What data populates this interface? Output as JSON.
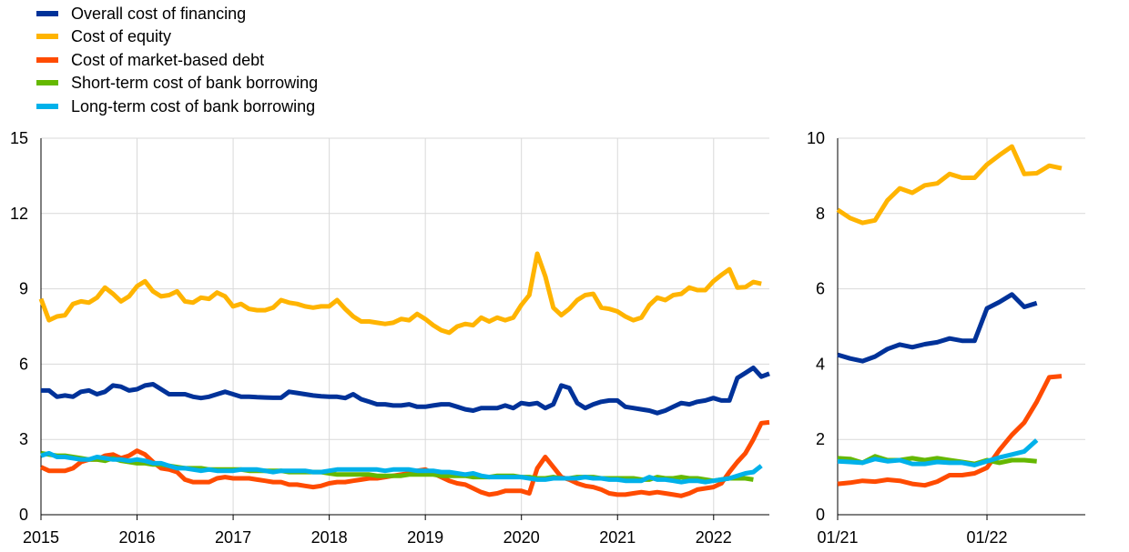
{
  "legend": [
    {
      "label": "Overall cost of financing",
      "color": "#003299"
    },
    {
      "label": "Cost of equity",
      "color": "#FFB400"
    },
    {
      "label": "Cost of market-based debt",
      "color": "#FF4B00"
    },
    {
      "label": "Short-term cost of bank borrowing",
      "color": "#65B800"
    },
    {
      "label": "Long-term cost of bank borrowing",
      "color": "#00B1EA"
    }
  ],
  "chart_data": [
    {
      "type": "line",
      "ylim": [
        0,
        15
      ],
      "xlim": [
        2015,
        2022.58
      ],
      "yticks": [
        "0",
        "3",
        "6",
        "9",
        "12",
        "15"
      ],
      "xticks": [
        "2015",
        "2016",
        "2017",
        "2018",
        "2019",
        "2020",
        "2021",
        "2022"
      ],
      "grid": "horizontal and vertical",
      "series": [
        {
          "name": "Overall cost of financing",
          "color": "#003299",
          "x_start": 2015,
          "x_step": 0.0833,
          "values": [
            4.95,
            4.95,
            4.7,
            4.75,
            4.7,
            4.9,
            4.95,
            4.8,
            4.9,
            5.15,
            5.1,
            4.95,
            5.0,
            5.15,
            5.2,
            5.0,
            4.8,
            4.8,
            4.8,
            4.7,
            4.65,
            4.7,
            4.8,
            4.9,
            4.8,
            4.7,
            4.7,
            4.68,
            4.67,
            4.66,
            4.66,
            4.9,
            4.85,
            4.8,
            4.75,
            4.72,
            4.7,
            4.7,
            4.65,
            4.8,
            4.6,
            4.5,
            4.4,
            4.4,
            4.35,
            4.35,
            4.4,
            4.3,
            4.3,
            4.35,
            4.4,
            4.4,
            4.3,
            4.2,
            4.15,
            4.25,
            4.25,
            4.25,
            4.35,
            4.25,
            4.45,
            4.4,
            4.45,
            4.25,
            4.4,
            5.15,
            5.05,
            4.45,
            4.25,
            4.4,
            4.5,
            4.55,
            4.55,
            4.3,
            4.25,
            4.2,
            4.15,
            4.05,
            4.15,
            4.3,
            4.45,
            4.4,
            4.5,
            4.55,
            4.65,
            4.55,
            4.55,
            5.45,
            5.65,
            5.85,
            5.5,
            5.62
          ]
        },
        {
          "name": "Cost of equity",
          "color": "#FFB400",
          "x_start": 2015,
          "x_step": 0.0833,
          "values": [
            8.6,
            7.75,
            7.9,
            7.95,
            8.4,
            8.5,
            8.45,
            8.65,
            9.05,
            8.8,
            8.5,
            8.7,
            9.1,
            9.3,
            8.9,
            8.7,
            8.75,
            8.9,
            8.5,
            8.45,
            8.65,
            8.6,
            8.85,
            8.7,
            8.3,
            8.4,
            8.2,
            8.15,
            8.15,
            8.25,
            8.55,
            8.45,
            8.4,
            8.3,
            8.25,
            8.3,
            8.3,
            8.55,
            8.2,
            7.9,
            7.7,
            7.7,
            7.65,
            7.6,
            7.65,
            7.8,
            7.75,
            8.0,
            7.8,
            7.55,
            7.35,
            7.25,
            7.5,
            7.6,
            7.55,
            7.85,
            7.7,
            7.85,
            7.75,
            7.85,
            8.35,
            8.75,
            10.4,
            9.5,
            8.25,
            7.95,
            8.2,
            8.55,
            8.75,
            8.8,
            8.25,
            8.2,
            8.1,
            7.9,
            7.75,
            7.85,
            8.35,
            8.65,
            8.55,
            8.75,
            8.8,
            9.05,
            8.95,
            8.95,
            9.3,
            9.55,
            9.78,
            9.05,
            9.07,
            9.27,
            9.2
          ]
        },
        {
          "name": "Cost of market-based debt",
          "color": "#FF4B00",
          "x_start": 2015,
          "x_step": 0.0833,
          "values": [
            1.9,
            1.75,
            1.75,
            1.75,
            1.85,
            2.1,
            2.2,
            2.2,
            2.35,
            2.4,
            2.25,
            2.35,
            2.55,
            2.4,
            2.1,
            1.85,
            1.8,
            1.7,
            1.4,
            1.3,
            1.3,
            1.3,
            1.45,
            1.5,
            1.45,
            1.45,
            1.45,
            1.4,
            1.35,
            1.3,
            1.3,
            1.2,
            1.2,
            1.15,
            1.1,
            1.15,
            1.25,
            1.3,
            1.3,
            1.35,
            1.4,
            1.45,
            1.45,
            1.5,
            1.55,
            1.6,
            1.65,
            1.75,
            1.8,
            1.65,
            1.5,
            1.35,
            1.25,
            1.2,
            1.05,
            0.9,
            0.8,
            0.85,
            0.95,
            0.95,
            0.95,
            0.85,
            1.85,
            2.3,
            1.9,
            1.5,
            1.4,
            1.25,
            1.15,
            1.1,
            1.0,
            0.85,
            0.8,
            0.8,
            0.85,
            0.9,
            0.85,
            0.9,
            0.85,
            0.8,
            0.75,
            0.85,
            1.0,
            1.05,
            1.1,
            1.25,
            1.7,
            2.1,
            2.45,
            3.0,
            3.65,
            3.68
          ]
        },
        {
          "name": "Short-term cost of bank borrowing",
          "color": "#65B800",
          "x_start": 2015,
          "x_step": 0.0833,
          "values": [
            2.45,
            2.4,
            2.35,
            2.35,
            2.3,
            2.25,
            2.2,
            2.2,
            2.15,
            2.25,
            2.15,
            2.1,
            2.05,
            2.05,
            2.0,
            2.0,
            1.95,
            1.9,
            1.85,
            1.85,
            1.85,
            1.8,
            1.8,
            1.8,
            1.8,
            1.8,
            1.75,
            1.75,
            1.75,
            1.75,
            1.75,
            1.7,
            1.7,
            1.7,
            1.7,
            1.7,
            1.65,
            1.6,
            1.6,
            1.6,
            1.6,
            1.6,
            1.55,
            1.55,
            1.55,
            1.55,
            1.6,
            1.6,
            1.6,
            1.6,
            1.55,
            1.55,
            1.55,
            1.55,
            1.5,
            1.5,
            1.5,
            1.55,
            1.55,
            1.55,
            1.5,
            1.5,
            1.45,
            1.45,
            1.5,
            1.45,
            1.45,
            1.5,
            1.5,
            1.5,
            1.45,
            1.45,
            1.45,
            1.45,
            1.45,
            1.4,
            1.4,
            1.5,
            1.45,
            1.45,
            1.5,
            1.45,
            1.45,
            1.4,
            1.35,
            1.4,
            1.45,
            1.45,
            1.45,
            1.4
          ]
        },
        {
          "name": "Long-term cost of bank borrowing",
          "color": "#00B1EA",
          "x_start": 2015,
          "x_step": 0.0833,
          "values": [
            2.35,
            2.45,
            2.3,
            2.3,
            2.25,
            2.2,
            2.2,
            2.3,
            2.25,
            2.2,
            2.2,
            2.15,
            2.2,
            2.15,
            2.05,
            2.05,
            1.95,
            1.85,
            1.85,
            1.8,
            1.75,
            1.8,
            1.75,
            1.75,
            1.75,
            1.8,
            1.8,
            1.8,
            1.75,
            1.7,
            1.75,
            1.75,
            1.75,
            1.75,
            1.7,
            1.7,
            1.75,
            1.8,
            1.8,
            1.8,
            1.8,
            1.8,
            1.8,
            1.75,
            1.8,
            1.8,
            1.8,
            1.75,
            1.75,
            1.75,
            1.7,
            1.7,
            1.65,
            1.6,
            1.65,
            1.55,
            1.5,
            1.5,
            1.5,
            1.5,
            1.5,
            1.45,
            1.4,
            1.4,
            1.45,
            1.45,
            1.45,
            1.45,
            1.5,
            1.45,
            1.45,
            1.4,
            1.4,
            1.35,
            1.35,
            1.35,
            1.5,
            1.4,
            1.4,
            1.35,
            1.3,
            1.35,
            1.35,
            1.3,
            1.35,
            1.4,
            1.45,
            1.55,
            1.65,
            1.7,
            1.95
          ]
        }
      ]
    },
    {
      "type": "line",
      "ylim": [
        0,
        10
      ],
      "xlim": [
        0,
        19.9
      ],
      "yticks": [
        "0",
        "2",
        "4",
        "6",
        "8",
        "10"
      ],
      "xticks": [
        "01/21",
        "01/22"
      ],
      "xtick_positions": [
        0,
        12
      ],
      "grid": "horizontal and vertical",
      "series": [
        {
          "name": "Overall cost of financing",
          "color": "#003299",
          "x_start": 0,
          "x_step": 1,
          "values": [
            4.25,
            4.15,
            4.08,
            4.2,
            4.4,
            4.52,
            4.45,
            4.53,
            4.58,
            4.68,
            4.62,
            4.62,
            5.48,
            5.65,
            5.85,
            5.52,
            5.62
          ]
        },
        {
          "name": "Cost of equity",
          "color": "#FFB400",
          "x_start": 0,
          "x_step": 1,
          "values": [
            8.1,
            7.88,
            7.75,
            7.82,
            8.35,
            8.67,
            8.55,
            8.75,
            8.8,
            9.05,
            8.95,
            8.95,
            9.3,
            9.55,
            9.78,
            9.05,
            9.07,
            9.27,
            9.2
          ]
        },
        {
          "name": "Cost of market-based debt",
          "color": "#FF4B00",
          "x_start": 0,
          "x_step": 1,
          "values": [
            0.82,
            0.85,
            0.9,
            0.88,
            0.93,
            0.9,
            0.82,
            0.78,
            0.88,
            1.05,
            1.05,
            1.1,
            1.25,
            1.72,
            2.12,
            2.45,
            3.0,
            3.65,
            3.68
          ]
        },
        {
          "name": "Short-term cost of bank borrowing",
          "color": "#65B800",
          "x_start": 0,
          "x_step": 1,
          "values": [
            1.5,
            1.48,
            1.38,
            1.55,
            1.45,
            1.45,
            1.5,
            1.45,
            1.5,
            1.45,
            1.4,
            1.35,
            1.45,
            1.38,
            1.45,
            1.45,
            1.42
          ]
        },
        {
          "name": "Long-term cost of bank borrowing",
          "color": "#00B1EA",
          "x_start": 0,
          "x_step": 1,
          "values": [
            1.42,
            1.4,
            1.38,
            1.48,
            1.42,
            1.45,
            1.35,
            1.35,
            1.4,
            1.38,
            1.38,
            1.32,
            1.42,
            1.52,
            1.6,
            1.68,
            1.98
          ]
        }
      ]
    }
  ]
}
